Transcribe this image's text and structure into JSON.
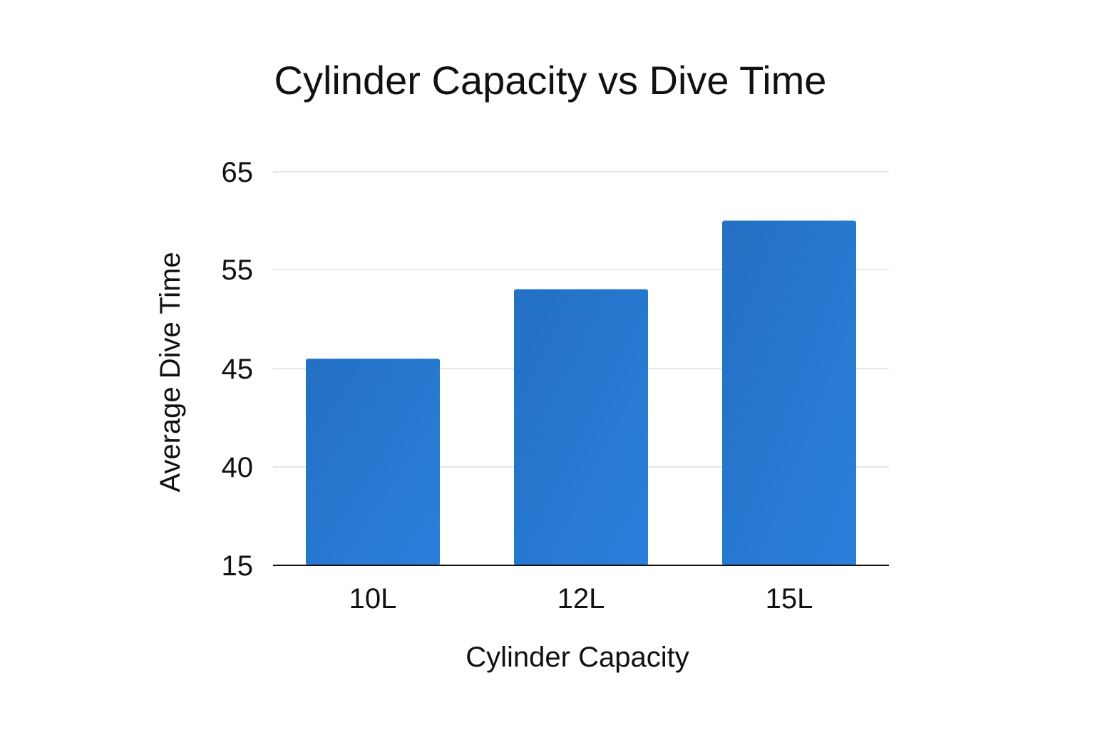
{
  "chart_data": {
    "type": "bar",
    "title": "Cylinder Capacity vs Dive Time",
    "xlabel": "Cylinder Capacity",
    "ylabel": "Average Dive Time",
    "categories": [
      "10L",
      "12L",
      "15L"
    ],
    "values": [
      46,
      53,
      60
    ],
    "y_ticks": [
      "15",
      "40",
      "45",
      "55",
      "65"
    ],
    "grid": true,
    "legend": "none",
    "colors": {
      "bar": "#2577d1",
      "bar_dark": "#2370c4",
      "bar_light": "#2a7fda"
    }
  }
}
